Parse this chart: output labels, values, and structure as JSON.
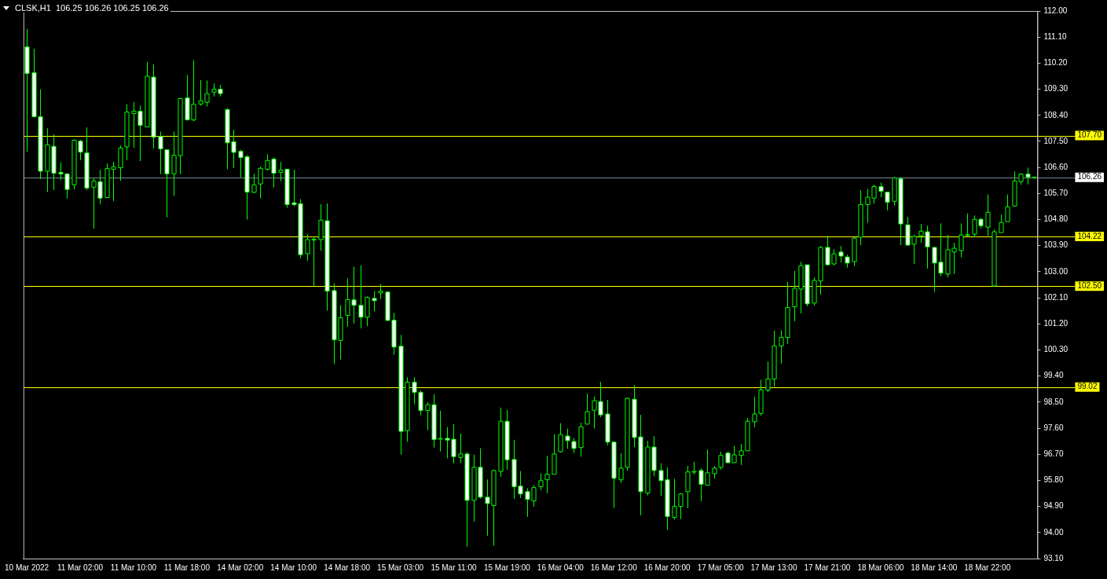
{
  "chart_data": {
    "type": "candlestick",
    "title": "CLSK,H1  106.25 106.26 106.25 106.26",
    "categories": [
      "10 Mar 2022",
      null,
      null,
      null,
      null,
      null,
      null,
      null,
      "11 Mar 02:00",
      null,
      null,
      null,
      null,
      null,
      null,
      null,
      "11 Mar 10:00",
      null,
      null,
      null,
      null,
      null,
      null,
      null,
      "11 Mar 18:00",
      null,
      null,
      null,
      null,
      null,
      null,
      null,
      "14 Mar 02:00",
      null,
      null,
      null,
      null,
      null,
      null,
      null,
      "14 Mar 10:00",
      null,
      null,
      null,
      null,
      null,
      null,
      null,
      "14 Mar 18:00",
      null,
      null,
      null,
      null,
      null,
      null,
      null,
      "15 Mar 03:00",
      null,
      null,
      null,
      null,
      null,
      null,
      null,
      "15 Mar 11:00",
      null,
      null,
      null,
      null,
      null,
      null,
      null,
      "15 Mar 19:00",
      null,
      null,
      null,
      null,
      null,
      null,
      null,
      "16 Mar 04:00",
      null,
      null,
      null,
      null,
      null,
      null,
      null,
      "16 Mar 12:00",
      null,
      null,
      null,
      null,
      null,
      null,
      null,
      "16 Mar 20:00",
      null,
      null,
      null,
      null,
      null,
      null,
      null,
      "17 Mar 05:00",
      null,
      null,
      null,
      null,
      null,
      null,
      null,
      "17 Mar 13:00",
      null,
      null,
      null,
      null,
      null,
      null,
      null,
      "17 Mar 21:00",
      null,
      null,
      null,
      null,
      null,
      null,
      null,
      "18 Mar 06:00",
      null,
      null,
      null,
      null,
      null,
      null,
      null,
      "18 Mar 14:00",
      null,
      null,
      null,
      null,
      null,
      null,
      null,
      "18 Mar 22:00",
      null,
      null,
      null,
      null,
      null,
      null,
      null
    ],
    "ohlc": [
      [
        110.76,
        111.38,
        107.14,
        109.84
      ],
      [
        109.87,
        110.7,
        108.33,
        108.35
      ],
      [
        108.35,
        109.3,
        106.2,
        106.47
      ],
      [
        106.47,
        107.95,
        105.75,
        107.38
      ],
      [
        107.33,
        107.75,
        105.82,
        106.4
      ],
      [
        106.43,
        106.78,
        106.16,
        106.38
      ],
      [
        106.38,
        106.4,
        105.53,
        105.84
      ],
      [
        106.0,
        107.57,
        105.84,
        107.54
      ],
      [
        107.51,
        107.55,
        106.85,
        107.13
      ],
      [
        107.1,
        107.98,
        105.82,
        105.89
      ],
      [
        105.92,
        106.24,
        104.49,
        106.13
      ],
      [
        106.11,
        106.52,
        105.33,
        105.54
      ],
      [
        105.56,
        106.74,
        105.56,
        106.56
      ],
      [
        106.54,
        106.79,
        105.44,
        106.62
      ],
      [
        106.59,
        107.36,
        106.14,
        107.27
      ],
      [
        107.31,
        108.79,
        106.85,
        108.51
      ],
      [
        108.46,
        108.86,
        107.28,
        108.54
      ],
      [
        108.54,
        108.73,
        106.82,
        108.05
      ],
      [
        108.0,
        110.25,
        108.0,
        109.75
      ],
      [
        109.72,
        110.16,
        107.26,
        107.64
      ],
      [
        107.67,
        107.84,
        106.37,
        107.24
      ],
      [
        107.21,
        107.21,
        104.88,
        106.38
      ],
      [
        106.38,
        107.84,
        105.61,
        107.02
      ],
      [
        107.01,
        109.0,
        106.37,
        108.98
      ],
      [
        109.0,
        109.79,
        108.24,
        108.24
      ],
      [
        108.24,
        110.3,
        108.2,
        108.78
      ],
      [
        108.79,
        109.62,
        108.73,
        108.9
      ],
      [
        108.85,
        109.6,
        108.7,
        109.15
      ],
      [
        109.2,
        109.5,
        109.05,
        109.3
      ],
      [
        109.3,
        109.45,
        109.05,
        109.15
      ],
      [
        108.6,
        108.65,
        106.54,
        107.45
      ],
      [
        107.49,
        107.9,
        106.58,
        107.12
      ],
      [
        107.16,
        107.21,
        106.26,
        106.94
      ],
      [
        106.97,
        107.03,
        104.8,
        105.75
      ],
      [
        105.74,
        106.38,
        105.72,
        106.0
      ],
      [
        106.03,
        106.63,
        105.53,
        106.57
      ],
      [
        106.54,
        107.06,
        106.49,
        106.84
      ],
      [
        106.89,
        106.95,
        105.91,
        106.4
      ],
      [
        106.43,
        106.79,
        106.13,
        106.51
      ],
      [
        106.54,
        106.54,
        105.21,
        105.32
      ],
      [
        105.38,
        106.52,
        105.26,
        105.32
      ],
      [
        105.35,
        105.51,
        103.46,
        103.59
      ],
      [
        103.62,
        104.3,
        103.38,
        104.11
      ],
      [
        104.1,
        104.22,
        102.51,
        104.12
      ],
      [
        104.11,
        105.33,
        103.72,
        104.78
      ],
      [
        104.76,
        105.36,
        101.66,
        102.33
      ],
      [
        102.35,
        102.6,
        99.81,
        100.65
      ],
      [
        100.63,
        101.85,
        99.97,
        101.41
      ],
      [
        101.49,
        102.77,
        101.1,
        102.04
      ],
      [
        102.03,
        103.17,
        101.21,
        101.84
      ],
      [
        101.84,
        103.22,
        101.05,
        101.43
      ],
      [
        101.43,
        102.15,
        101.12,
        102.11
      ],
      [
        102.08,
        102.33,
        101.64,
        102.0
      ],
      [
        102.27,
        102.58,
        102.06,
        102.33
      ],
      [
        102.3,
        102.33,
        101.29,
        101.32
      ],
      [
        101.33,
        101.58,
        100.13,
        100.4
      ],
      [
        100.43,
        100.82,
        96.69,
        97.49
      ],
      [
        97.52,
        99.36,
        97.13,
        99.19
      ],
      [
        99.19,
        99.36,
        98.43,
        98.84
      ],
      [
        98.84,
        98.9,
        98.05,
        98.21
      ],
      [
        98.21,
        98.5,
        97.53,
        98.41
      ],
      [
        98.41,
        98.77,
        96.93,
        97.21
      ],
      [
        97.25,
        98.2,
        96.8,
        97.25
      ],
      [
        97.25,
        97.64,
        96.56,
        97.19
      ],
      [
        97.22,
        97.74,
        96.38,
        96.62
      ],
      [
        96.59,
        97.42,
        96.39,
        96.71
      ],
      [
        96.71,
        96.77,
        93.51,
        95.11
      ],
      [
        95.11,
        96.69,
        94.37,
        96.25
      ],
      [
        96.25,
        96.91,
        95.17,
        95.22
      ],
      [
        95.22,
        95.83,
        93.89,
        95.0
      ],
      [
        94.93,
        96.17,
        93.54,
        96.14
      ],
      [
        96.11,
        98.31,
        95.92,
        97.84
      ],
      [
        97.84,
        98.23,
        96.16,
        96.51
      ],
      [
        96.52,
        97.2,
        95.16,
        95.58
      ],
      [
        95.6,
        96.12,
        95.19,
        95.33
      ],
      [
        95.41,
        95.53,
        94.54,
        95.14
      ],
      [
        95.09,
        95.64,
        94.89,
        95.55
      ],
      [
        95.58,
        96.04,
        95.46,
        95.79
      ],
      [
        95.82,
        96.64,
        95.35,
        96.01
      ],
      [
        96.01,
        97.39,
        96.01,
        96.71
      ],
      [
        96.79,
        97.77,
        96.76,
        97.38
      ],
      [
        97.33,
        97.58,
        96.89,
        97.17
      ],
      [
        97.14,
        97.26,
        96.74,
        96.9
      ],
      [
        96.93,
        97.79,
        96.62,
        97.65
      ],
      [
        97.74,
        98.79,
        97.74,
        98.17
      ],
      [
        98.22,
        98.69,
        97.59,
        98.55
      ],
      [
        98.52,
        99.2,
        97.98,
        98.06
      ],
      [
        98.09,
        98.58,
        97.01,
        97.12
      ],
      [
        97.12,
        97.14,
        94.84,
        95.87
      ],
      [
        95.82,
        96.73,
        95.71,
        96.22
      ],
      [
        96.25,
        98.66,
        96.14,
        98.63
      ],
      [
        98.6,
        99.09,
        96.95,
        97.28
      ],
      [
        97.3,
        98.06,
        94.59,
        95.41
      ],
      [
        95.36,
        97.17,
        95.28,
        96.95
      ],
      [
        96.95,
        97.33,
        95.94,
        96.14
      ],
      [
        96.14,
        96.39,
        95.27,
        95.79
      ],
      [
        95.82,
        96.25,
        94.09,
        94.55
      ],
      [
        94.52,
        95.85,
        94.44,
        94.9
      ],
      [
        94.9,
        95.36,
        94.46,
        95.33
      ],
      [
        95.41,
        96.3,
        94.84,
        96.09
      ],
      [
        96.1,
        96.44,
        96.0,
        96.11
      ],
      [
        96.14,
        96.22,
        95.08,
        95.66
      ],
      [
        95.63,
        96.87,
        95.63,
        96.06
      ],
      [
        96.03,
        96.3,
        95.87,
        96.22
      ],
      [
        96.25,
        96.79,
        96.17,
        96.66
      ],
      [
        96.74,
        96.79,
        96.38,
        96.41
      ],
      [
        96.41,
        96.99,
        96.41,
        96.68
      ],
      [
        96.66,
        97.06,
        96.33,
        96.82
      ],
      [
        96.82,
        97.95,
        96.82,
        97.84
      ],
      [
        97.82,
        98.68,
        97.63,
        98.09
      ],
      [
        98.11,
        99.27,
        98.03,
        98.92
      ],
      [
        98.92,
        99.9,
        98.84,
        99.3
      ],
      [
        99.3,
        100.96,
        99.03,
        100.44
      ],
      [
        100.44,
        100.98,
        99.83,
        100.73
      ],
      [
        100.73,
        102.65,
        100.51,
        101.76
      ],
      [
        101.79,
        103.03,
        101.29,
        102.43
      ],
      [
        102.4,
        103.35,
        101.56,
        103.21
      ],
      [
        103.24,
        103.24,
        101.81,
        101.89
      ],
      [
        101.92,
        102.81,
        101.83,
        102.7
      ],
      [
        102.68,
        103.89,
        102.21,
        103.84
      ],
      [
        103.84,
        104.24,
        103.22,
        103.24
      ],
      [
        103.27,
        103.78,
        103.22,
        103.62
      ],
      [
        103.68,
        103.89,
        103.32,
        103.54
      ],
      [
        103.51,
        103.59,
        103.14,
        103.3
      ],
      [
        103.35,
        104.19,
        103.19,
        104.16
      ],
      [
        104.19,
        105.81,
        103.92,
        105.32
      ],
      [
        105.32,
        105.86,
        104.69,
        105.57
      ],
      [
        105.54,
        106.0,
        105.35,
        105.94
      ],
      [
        105.94,
        106.08,
        105.57,
        105.78
      ],
      [
        105.75,
        105.75,
        105.12,
        105.4
      ],
      [
        105.43,
        106.27,
        105.29,
        106.24
      ],
      [
        106.21,
        106.27,
        103.92,
        104.65
      ],
      [
        104.62,
        104.89,
        103.89,
        103.92
      ],
      [
        103.95,
        104.27,
        103.27,
        104.22
      ],
      [
        104.24,
        104.65,
        104.0,
        104.4
      ],
      [
        104.38,
        104.59,
        103.11,
        103.86
      ],
      [
        103.84,
        103.84,
        102.3,
        103.3
      ],
      [
        103.33,
        104.67,
        102.84,
        102.95
      ],
      [
        102.92,
        104.27,
        102.81,
        103.76
      ],
      [
        103.68,
        104.0,
        102.92,
        103.81
      ],
      [
        103.73,
        104.67,
        103.5,
        104.27
      ],
      [
        104.28,
        105.01,
        104.22,
        104.28
      ],
      [
        104.3,
        104.94,
        104.19,
        104.81
      ],
      [
        104.81,
        104.86,
        104.49,
        104.59
      ],
      [
        104.54,
        105.67,
        104.24,
        105.05
      ],
      [
        102.51,
        104.46,
        102.49,
        104.38
      ],
      [
        104.35,
        104.97,
        104.35,
        104.7
      ],
      [
        104.73,
        105.67,
        104.73,
        105.24
      ],
      [
        105.27,
        106.46,
        105.24,
        106.13
      ],
      [
        106.11,
        106.4,
        106.0,
        106.37
      ],
      [
        106.37,
        106.59,
        106.02,
        106.27
      ],
      [
        106.25,
        106.26,
        106.25,
        106.26
      ]
    ],
    "ylim": [
      93.1,
      112
    ],
    "yticks": [
      {
        "value": 93.1,
        "label": "93.10"
      },
      {
        "value": 94,
        "label": "94.00"
      },
      {
        "value": 94.9,
        "label": "94.90"
      },
      {
        "value": 95.8,
        "label": "95.80"
      },
      {
        "value": 96.7,
        "label": "96.70"
      },
      {
        "value": 97.6,
        "label": "97.60"
      },
      {
        "value": 98.5,
        "label": "98.50"
      },
      {
        "value": 99.4,
        "label": "99.40"
      },
      {
        "value": 100.3,
        "label": "100.30"
      },
      {
        "value": 101.2,
        "label": "101.20"
      },
      {
        "value": 102.1,
        "label": "102.10"
      },
      {
        "value": 103,
        "label": "103.00"
      },
      {
        "value": 103.9,
        "label": "103.90"
      },
      {
        "value": 104.8,
        "label": "104.80"
      },
      {
        "value": 105.7,
        "label": "105.70"
      },
      {
        "value": 106.6,
        "label": "106.60"
      },
      {
        "value": 107.5,
        "label": "107.50"
      },
      {
        "value": 108.4,
        "label": "108.40"
      },
      {
        "value": 109.3,
        "label": "109.30"
      },
      {
        "value": 110.2,
        "label": "110.20"
      },
      {
        "value": 111.1,
        "label": "111.10"
      },
      {
        "value": 112,
        "label": "112.00"
      }
    ],
    "ref_lines": [
      {
        "axis": "y",
        "value": 107.7,
        "label": "107.70",
        "color": "#ffff00"
      },
      {
        "axis": "y",
        "value": 106.26,
        "label": "106.26",
        "color": "#778899"
      },
      {
        "axis": "y",
        "value": 104.22,
        "label": "104.22",
        "color": "#ffff00"
      },
      {
        "axis": "y",
        "value": 102.5,
        "label": "102.50",
        "color": "#ffff00"
      },
      {
        "axis": "y",
        "value": 99.02,
        "label": "99.02",
        "color": "#ffff00"
      }
    ]
  }
}
